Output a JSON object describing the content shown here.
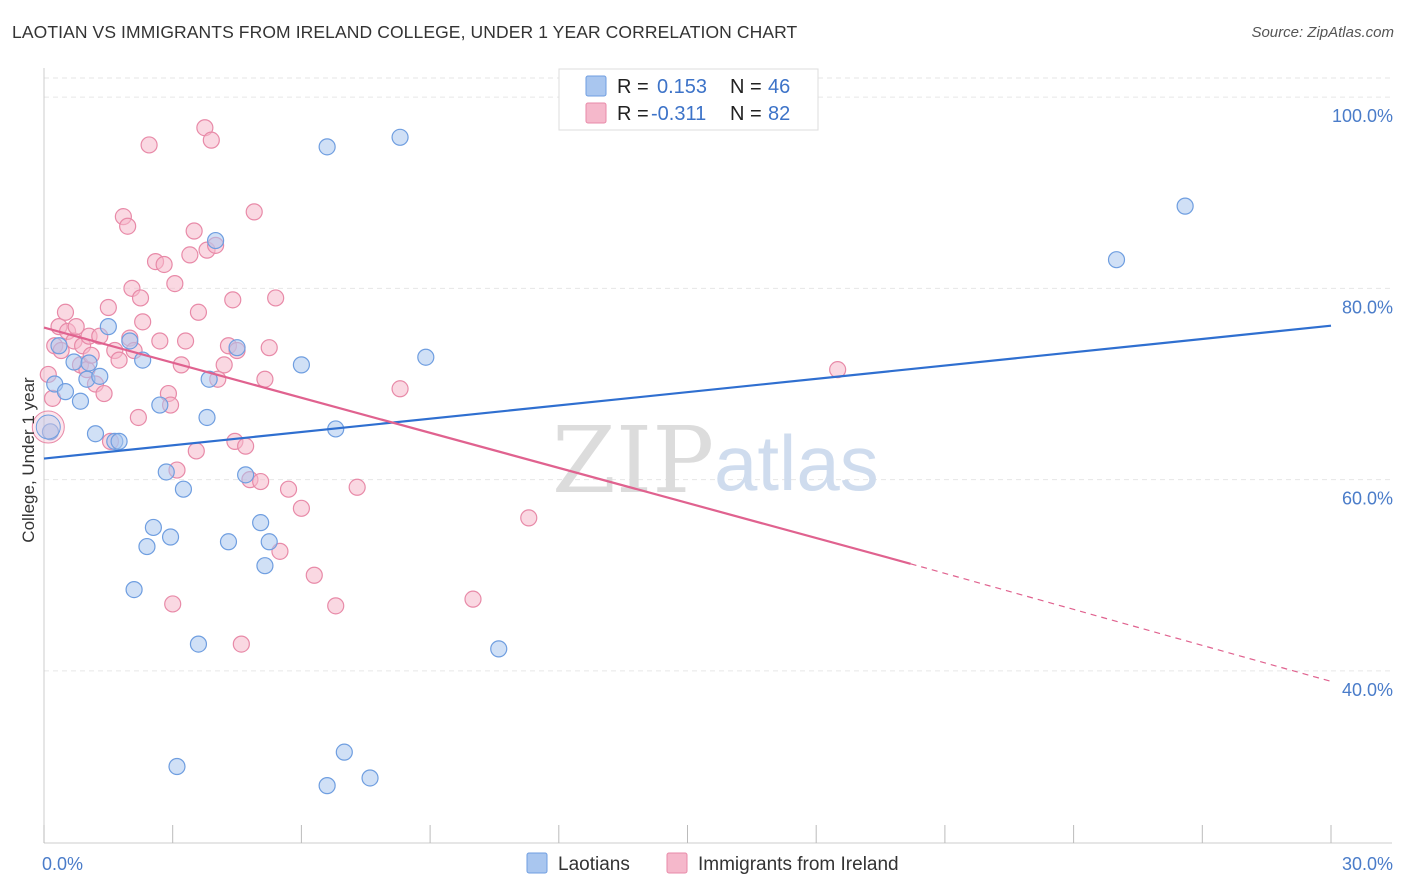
{
  "header": {
    "title": "LAOTIAN VS IMMIGRANTS FROM IRELAND COLLEGE, UNDER 1 YEAR CORRELATION CHART",
    "source": "Source: ZipAtlas.com"
  },
  "watermark": {
    "part1": "ZIP",
    "part2": "atlas"
  },
  "legend": {
    "items": [
      {
        "r_label": "R =",
        "r_value": "0.153",
        "n_label": "N =",
        "n_value": "46"
      },
      {
        "r_label": "R =",
        "r_value": "-0.311",
        "n_label": "N =",
        "n_value": "82"
      }
    ]
  },
  "bottom_legend": {
    "items": [
      {
        "label": "Laotians"
      },
      {
        "label": "Immigrants from Ireland"
      }
    ]
  },
  "colors": {
    "blue_fill": "#a9c6ef",
    "blue_stroke": "#6f9ee0",
    "blue_line": "#2f6fd0",
    "pink_fill": "#f5b8cb",
    "pink_stroke": "#e88aa8",
    "pink_line": "#e0628f",
    "tick_label": "#4a7cc9",
    "grid": "#e6e6e6"
  },
  "chart_data": {
    "type": "scatter",
    "title": "LAOTIAN VS IMMIGRANTS FROM IRELAND COLLEGE, UNDER 1 YEAR CORRELATION CHART",
    "xlabel": "",
    "ylabel": "College, Under 1 year",
    "xlim": [
      0,
      30
    ],
    "ylim": [
      22,
      102
    ],
    "x_tick_labels": [
      "0.0%",
      "30.0%"
    ],
    "y_ticks": [
      40,
      60,
      80,
      100
    ],
    "y_tick_labels": [
      "40.0%",
      "60.0%",
      "80.0%",
      "100.0%"
    ],
    "grid": true,
    "legend_position": "top-center",
    "series": [
      {
        "name": "Laotians",
        "color": "#a9c6ef",
        "r": 0.153,
        "n": 46,
        "trend": {
          "x0": 0,
          "y0": 62.2,
          "x1": 30,
          "y1": 76.1
        },
        "points": [
          [
            0.15,
            65.0
          ],
          [
            0.25,
            70.0
          ],
          [
            0.35,
            74.0
          ],
          [
            0.5,
            69.2
          ],
          [
            0.7,
            72.3
          ],
          [
            0.85,
            68.2
          ],
          [
            1.0,
            70.5
          ],
          [
            1.05,
            72.2
          ],
          [
            1.2,
            64.8
          ],
          [
            1.3,
            70.8
          ],
          [
            1.5,
            76.0
          ],
          [
            1.65,
            64.0
          ],
          [
            1.75,
            64.0
          ],
          [
            2.0,
            74.5
          ],
          [
            2.1,
            48.5
          ],
          [
            2.3,
            72.5
          ],
          [
            2.4,
            53.0
          ],
          [
            2.55,
            55.0
          ],
          [
            2.7,
            67.8
          ],
          [
            2.85,
            60.8
          ],
          [
            2.95,
            54.0
          ],
          [
            3.1,
            30.0
          ],
          [
            3.25,
            59.0
          ],
          [
            3.6,
            42.8
          ],
          [
            3.8,
            66.5
          ],
          [
            3.85,
            70.5
          ],
          [
            4.0,
            85.0
          ],
          [
            4.3,
            53.5
          ],
          [
            4.5,
            73.8
          ],
          [
            4.7,
            60.5
          ],
          [
            5.05,
            55.5
          ],
          [
            5.15,
            51.0
          ],
          [
            5.25,
            53.5
          ],
          [
            6.0,
            72.0
          ],
          [
            6.6,
            94.8
          ],
          [
            6.8,
            65.3
          ],
          [
            6.6,
            28.0
          ],
          [
            7.0,
            31.5
          ],
          [
            7.6,
            28.8
          ],
          [
            8.3,
            95.8
          ],
          [
            8.9,
            72.8
          ],
          [
            10.6,
            42.3
          ],
          [
            25.0,
            83.0
          ],
          [
            26.6,
            88.6
          ]
        ]
      },
      {
        "name": "Immigrants from Ireland",
        "color": "#f5b8cb",
        "r": -0.311,
        "n": 82,
        "trend": {
          "x0": 0,
          "y0": 75.9,
          "x1": 20.2,
          "y1": 51.2,
          "dash_x1": 30,
          "dash_y1": 38.9
        },
        "points": [
          [
            0.1,
            71.0
          ],
          [
            0.2,
            68.5
          ],
          [
            0.25,
            74.0
          ],
          [
            0.35,
            76.0
          ],
          [
            0.4,
            73.5
          ],
          [
            0.5,
            77.5
          ],
          [
            0.55,
            75.5
          ],
          [
            0.7,
            74.5
          ],
          [
            0.75,
            76.0
          ],
          [
            0.85,
            72.0
          ],
          [
            0.9,
            74.0
          ],
          [
            1.0,
            71.5
          ],
          [
            1.05,
            75.0
          ],
          [
            1.1,
            73.0
          ],
          [
            1.2,
            70.0
          ],
          [
            1.3,
            75.0
          ],
          [
            1.4,
            69.0
          ],
          [
            1.5,
            78.0
          ],
          [
            1.55,
            64.0
          ],
          [
            1.65,
            73.5
          ],
          [
            1.75,
            72.5
          ],
          [
            1.85,
            87.5
          ],
          [
            1.95,
            86.5
          ],
          [
            2.0,
            74.8
          ],
          [
            2.05,
            80.0
          ],
          [
            2.1,
            73.5
          ],
          [
            2.2,
            66.5
          ],
          [
            2.25,
            79.0
          ],
          [
            2.3,
            76.5
          ],
          [
            2.45,
            95.0
          ],
          [
            2.6,
            82.8
          ],
          [
            2.7,
            74.5
          ],
          [
            2.8,
            82.5
          ],
          [
            2.9,
            69.0
          ],
          [
            2.95,
            67.8
          ],
          [
            3.0,
            47.0
          ],
          [
            3.05,
            80.5
          ],
          [
            3.1,
            61.0
          ],
          [
            3.2,
            72.0
          ],
          [
            3.3,
            74.5
          ],
          [
            3.4,
            83.5
          ],
          [
            3.5,
            86.0
          ],
          [
            3.55,
            63.0
          ],
          [
            3.6,
            77.5
          ],
          [
            3.75,
            96.8
          ],
          [
            3.8,
            84.0
          ],
          [
            3.9,
            95.5
          ],
          [
            4.0,
            84.5
          ],
          [
            4.05,
            70.5
          ],
          [
            4.2,
            72.0
          ],
          [
            4.3,
            74.0
          ],
          [
            4.4,
            78.8
          ],
          [
            4.45,
            64.0
          ],
          [
            4.5,
            73.5
          ],
          [
            4.6,
            42.8
          ],
          [
            4.7,
            63.5
          ],
          [
            4.8,
            60.0
          ],
          [
            4.9,
            88.0
          ],
          [
            5.05,
            59.8
          ],
          [
            5.15,
            70.5
          ],
          [
            5.25,
            73.8
          ],
          [
            5.4,
            79.0
          ],
          [
            5.5,
            52.5
          ],
          [
            5.7,
            59.0
          ],
          [
            6.0,
            57.0
          ],
          [
            6.3,
            50.0
          ],
          [
            6.8,
            46.8
          ],
          [
            7.3,
            59.2
          ],
          [
            8.3,
            69.5
          ],
          [
            10.0,
            47.5
          ],
          [
            11.3,
            56.0
          ],
          [
            18.5,
            71.5
          ]
        ]
      }
    ]
  }
}
